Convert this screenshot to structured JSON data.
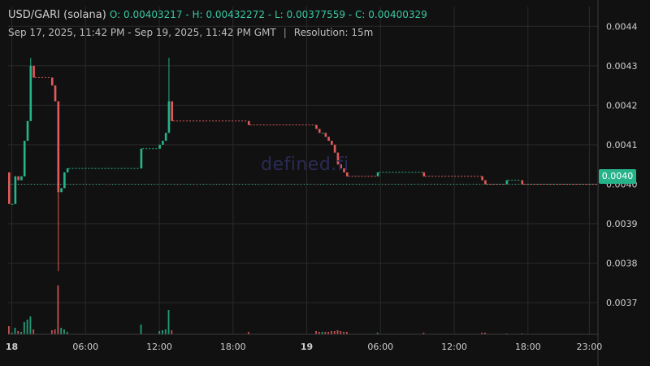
{
  "header": {
    "pair": "USD/GARI (solana)",
    "open_label": "O:",
    "open": "0.00403217",
    "high_label": "H:",
    "high": "0.00432272",
    "low_label": "L:",
    "low": "0.00377559",
    "close_label": "C:",
    "close": "0.00400329",
    "range": "Sep 17, 2025, 11:42 PM - Sep 19, 2025, 11:42 PM GMT",
    "separator": "|",
    "resolution": "Resolution: 15m"
  },
  "watermark": "defined.fi",
  "current_price": "0.0040",
  "colors": {
    "up": "#26b38a",
    "down": "#e05a5a",
    "grid": "#2a2a2a",
    "axis_text": "#cfcfcf"
  },
  "chart_data": {
    "type": "candlestick",
    "ylim": [
      0.00362,
      0.00445
    ],
    "y_ticks": [
      "0.0044",
      "0.0043",
      "0.0042",
      "0.0041",
      "0.0040",
      "0.0039",
      "0.0038",
      "0.0037"
    ],
    "y_tick_values": [
      0.0044,
      0.0043,
      0.0042,
      0.0041,
      0.004,
      0.0039,
      0.0038,
      0.0037
    ],
    "x_ticks": [
      {
        "label": "18",
        "hour": 0.3,
        "bold": true
      },
      {
        "label": "06:00",
        "hour": 6.3
      },
      {
        "label": "12:00",
        "hour": 12.3
      },
      {
        "label": "18:00",
        "hour": 18.3
      },
      {
        "label": "19",
        "hour": 24.3,
        "bold": true
      },
      {
        "label": "06:00",
        "hour": 30.3
      },
      {
        "label": "12:00",
        "hour": 36.3
      },
      {
        "label": "18:00",
        "hour": 42.3
      },
      {
        "label": "23:00",
        "hour": 47.3
      }
    ],
    "x_range_hours": [
      0,
      48
    ],
    "candles": [
      {
        "t": 0.0,
        "o": 0.00403,
        "h": 0.00403,
        "l": 0.00395,
        "c": 0.00395,
        "v": 10
      },
      {
        "t": 0.25,
        "o": 0.00395,
        "h": 0.00395,
        "l": 0.00395,
        "c": 0.00395,
        "v": 2
      },
      {
        "t": 0.5,
        "o": 0.00395,
        "h": 0.00402,
        "l": 0.00395,
        "c": 0.00402,
        "v": 8
      },
      {
        "t": 0.75,
        "o": 0.00402,
        "h": 0.00402,
        "l": 0.00401,
        "c": 0.00401,
        "v": 4
      },
      {
        "t": 1.0,
        "o": 0.00401,
        "h": 0.00402,
        "l": 0.00401,
        "c": 0.00402,
        "v": 3
      },
      {
        "t": 1.25,
        "o": 0.00402,
        "h": 0.00411,
        "l": 0.00402,
        "c": 0.00411,
        "v": 15
      },
      {
        "t": 1.5,
        "o": 0.00411,
        "h": 0.00416,
        "l": 0.00411,
        "c": 0.00416,
        "v": 18
      },
      {
        "t": 1.75,
        "o": 0.00416,
        "h": 0.00432,
        "l": 0.00416,
        "c": 0.0043,
        "v": 22
      },
      {
        "t": 2.0,
        "o": 0.0043,
        "h": 0.0043,
        "l": 0.00427,
        "c": 0.00427,
        "v": 6
      },
      {
        "t": 3.5,
        "o": 0.00427,
        "h": 0.00427,
        "l": 0.00425,
        "c": 0.00425,
        "v": 5
      },
      {
        "t": 3.75,
        "o": 0.00425,
        "h": 0.00425,
        "l": 0.00421,
        "c": 0.00421,
        "v": 6
      },
      {
        "t": 4.0,
        "o": 0.00421,
        "h": 0.00421,
        "l": 0.00378,
        "c": 0.00398,
        "v": 60
      },
      {
        "t": 4.25,
        "o": 0.00398,
        "h": 0.00399,
        "l": 0.00398,
        "c": 0.00399,
        "v": 8
      },
      {
        "t": 4.5,
        "o": 0.00399,
        "h": 0.00403,
        "l": 0.00399,
        "c": 0.00403,
        "v": 6
      },
      {
        "t": 4.75,
        "o": 0.00403,
        "h": 0.00404,
        "l": 0.00403,
        "c": 0.00404,
        "v": 3
      },
      {
        "t": 10.75,
        "o": 0.00404,
        "h": 0.00409,
        "l": 0.00404,
        "c": 0.00409,
        "v": 12
      },
      {
        "t": 12.25,
        "o": 0.00409,
        "h": 0.0041,
        "l": 0.00409,
        "c": 0.0041,
        "v": 4
      },
      {
        "t": 12.5,
        "o": 0.0041,
        "h": 0.00411,
        "l": 0.0041,
        "c": 0.00411,
        "v": 5
      },
      {
        "t": 12.75,
        "o": 0.00411,
        "h": 0.00413,
        "l": 0.00411,
        "c": 0.00413,
        "v": 6
      },
      {
        "t": 13.0,
        "o": 0.00413,
        "h": 0.00432,
        "l": 0.00413,
        "c": 0.00421,
        "v": 30
      },
      {
        "t": 13.25,
        "o": 0.00421,
        "h": 0.00421,
        "l": 0.00416,
        "c": 0.00416,
        "v": 5
      },
      {
        "t": 19.5,
        "o": 0.00416,
        "h": 0.00416,
        "l": 0.00415,
        "c": 0.00415,
        "v": 3
      },
      {
        "t": 25.0,
        "o": 0.00415,
        "h": 0.00415,
        "l": 0.00414,
        "c": 0.00414,
        "v": 4
      },
      {
        "t": 25.25,
        "o": 0.00414,
        "h": 0.00414,
        "l": 0.00413,
        "c": 0.00413,
        "v": 3
      },
      {
        "t": 25.5,
        "o": 0.00413,
        "h": 0.00413,
        "l": 0.00413,
        "c": 0.00413,
        "v": 3
      },
      {
        "t": 25.75,
        "o": 0.00413,
        "h": 0.00413,
        "l": 0.00412,
        "c": 0.00412,
        "v": 3
      },
      {
        "t": 26.0,
        "o": 0.00412,
        "h": 0.00412,
        "l": 0.00411,
        "c": 0.00411,
        "v": 3
      },
      {
        "t": 26.25,
        "o": 0.00411,
        "h": 0.00411,
        "l": 0.0041,
        "c": 0.0041,
        "v": 4
      },
      {
        "t": 26.5,
        "o": 0.0041,
        "h": 0.0041,
        "l": 0.00408,
        "c": 0.00408,
        "v": 4
      },
      {
        "t": 26.75,
        "o": 0.00408,
        "h": 0.00408,
        "l": 0.00405,
        "c": 0.00405,
        "v": 5
      },
      {
        "t": 27.0,
        "o": 0.00405,
        "h": 0.00405,
        "l": 0.00404,
        "c": 0.00404,
        "v": 4
      },
      {
        "t": 27.25,
        "o": 0.00404,
        "h": 0.00404,
        "l": 0.00403,
        "c": 0.00403,
        "v": 3
      },
      {
        "t": 27.5,
        "o": 0.00403,
        "h": 0.00403,
        "l": 0.00402,
        "c": 0.00402,
        "v": 3
      },
      {
        "t": 30.0,
        "o": 0.00402,
        "h": 0.00403,
        "l": 0.00402,
        "c": 0.00403,
        "v": 2
      },
      {
        "t": 33.75,
        "o": 0.00403,
        "h": 0.00403,
        "l": 0.00402,
        "c": 0.00402,
        "v": 2
      },
      {
        "t": 38.5,
        "o": 0.00402,
        "h": 0.00402,
        "l": 0.00401,
        "c": 0.00401,
        "v": 2
      },
      {
        "t": 38.75,
        "o": 0.00401,
        "h": 0.00401,
        "l": 0.004,
        "c": 0.004,
        "v": 2
      },
      {
        "t": 40.5,
        "o": 0.004,
        "h": 0.00401,
        "l": 0.004,
        "c": 0.00401,
        "v": 1
      },
      {
        "t": 41.75,
        "o": 0.00401,
        "h": 0.00401,
        "l": 0.004,
        "c": 0.004,
        "v": 1
      }
    ]
  }
}
